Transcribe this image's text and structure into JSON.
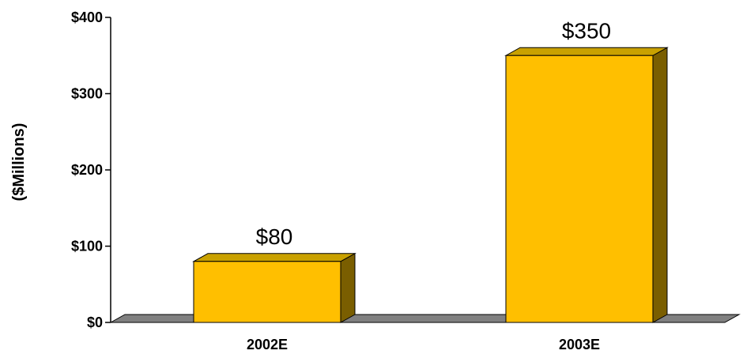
{
  "chart_data": {
    "type": "bar",
    "categories": [
      "2002E",
      "2003E"
    ],
    "values": [
      80,
      350
    ],
    "data_labels": [
      "$80",
      "$350"
    ],
    "title": "",
    "xlabel": "",
    "ylabel": "($Millions)",
    "ylim": [
      0,
      400
    ],
    "yticks": [
      0,
      100,
      200,
      300,
      400
    ],
    "ytick_labels": [
      "$0",
      "$100",
      "$200",
      "$300",
      "$400"
    ],
    "grid": false,
    "legend": "none",
    "style": "3d",
    "colors": {
      "bar_front": "#FFBF00",
      "bar_top": "#C9A100",
      "bar_side": "#7A5E00",
      "floor": "#808080"
    }
  }
}
